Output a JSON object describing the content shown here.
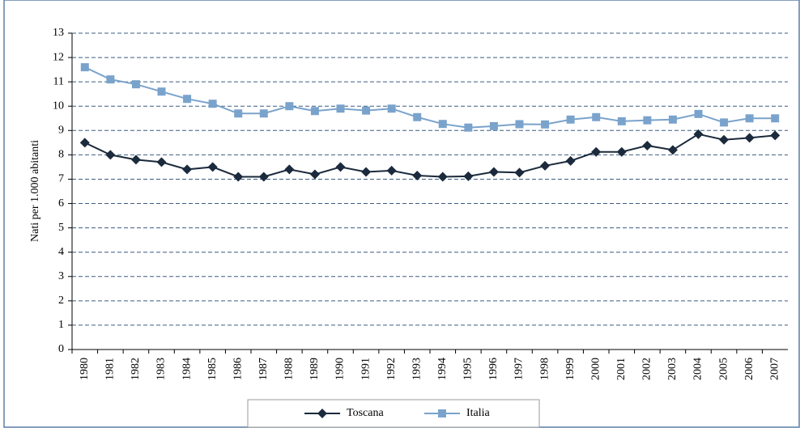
{
  "chart_data": {
    "type": "line",
    "y_label": "Nati per 1.000 abitanti",
    "categories": [
      "1980",
      "1981",
      "1982",
      "1983",
      "1984",
      "1985",
      "1986",
      "1987",
      "1988",
      "1989",
      "1990",
      "1991",
      "1992",
      "1993",
      "1994",
      "1995",
      "1996",
      "1997",
      "1998",
      "1999",
      "2000",
      "2001",
      "2002",
      "2003",
      "2004",
      "2005",
      "2006",
      "2007"
    ],
    "series": [
      {
        "name": "Toscana",
        "color": "#1b2a3c",
        "marker": "diamond",
        "values": [
          8.5,
          8.0,
          7.8,
          7.7,
          7.4,
          7.5,
          7.1,
          7.1,
          7.4,
          7.2,
          7.5,
          7.3,
          7.35,
          7.15,
          7.1,
          7.12,
          7.3,
          7.27,
          7.55,
          7.75,
          8.12,
          8.12,
          8.38,
          8.2,
          8.85,
          8.62,
          8.7,
          8.8
        ]
      },
      {
        "name": "Italia",
        "color": "#7aa3cc",
        "marker": "square",
        "values": [
          11.6,
          11.1,
          10.9,
          10.6,
          10.3,
          10.1,
          9.7,
          9.7,
          10.0,
          9.8,
          9.9,
          9.82,
          9.9,
          9.55,
          9.27,
          9.12,
          9.18,
          9.26,
          9.25,
          9.45,
          9.55,
          9.38,
          9.42,
          9.45,
          9.68,
          9.33,
          9.5,
          9.5
        ]
      }
    ],
    "ylim": [
      0,
      13
    ],
    "yticks": [
      0,
      1,
      2,
      3,
      4,
      5,
      6,
      7,
      8,
      9,
      10,
      11,
      12,
      13
    ],
    "grid": true,
    "legend": "bottom"
  }
}
